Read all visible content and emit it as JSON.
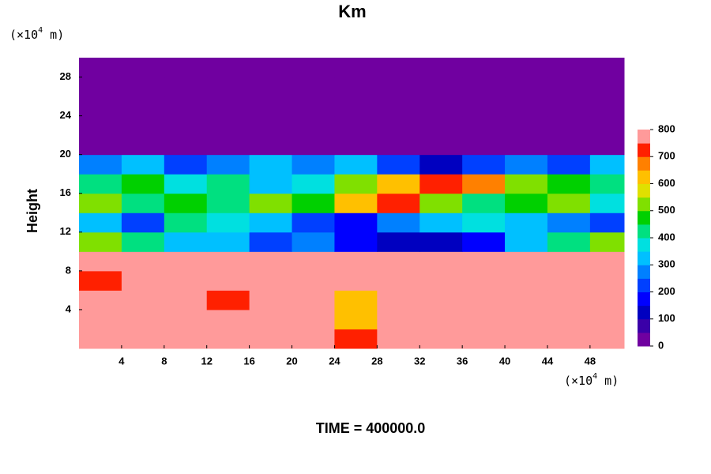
{
  "chart_data": {
    "type": "heatmap",
    "title": "Km",
    "y_label": "Height",
    "y_unit": {
      "prefix": "(×10",
      "exponent": "4",
      "suffix": " m)"
    },
    "x_unit": {
      "prefix": "(×10",
      "exponent": "4",
      "suffix": " m)"
    },
    "footer": "TIME = 400000.0",
    "x": [
      0,
      4,
      8,
      12,
      16,
      20,
      24,
      28,
      32,
      36,
      40,
      44,
      48,
      51.2
    ],
    "y": [
      0,
      2,
      4,
      6,
      8,
      10,
      12,
      14,
      16,
      18,
      20,
      22,
      24,
      26,
      28,
      30
    ],
    "z": [
      [
        800,
        800,
        800,
        800,
        800,
        800,
        700,
        800,
        800,
        800,
        800,
        800,
        800
      ],
      [
        800,
        800,
        800,
        800,
        800,
        800,
        600,
        800,
        800,
        800,
        800,
        800,
        800
      ],
      [
        800,
        750,
        800,
        700,
        800,
        800,
        600,
        800,
        800,
        800,
        800,
        800,
        800
      ],
      [
        700,
        800,
        800,
        800,
        800,
        800,
        800,
        800,
        800,
        800,
        800,
        800,
        800
      ],
      [
        800,
        800,
        800,
        800,
        800,
        800,
        800,
        800,
        800,
        800,
        800,
        800,
        800
      ],
      [
        500,
        400,
        300,
        300,
        200,
        250,
        150,
        100,
        100,
        150,
        300,
        400,
        500
      ],
      [
        300,
        200,
        400,
        350,
        300,
        200,
        150,
        250,
        300,
        350,
        300,
        250,
        200
      ],
      [
        500,
        400,
        450,
        400,
        500,
        450,
        600,
        700,
        500,
        400,
        450,
        500,
        350
      ],
      [
        400,
        450,
        350,
        400,
        300,
        350,
        500,
        600,
        700,
        650,
        500,
        450,
        400
      ],
      [
        250,
        300,
        200,
        250,
        300,
        250,
        300,
        200,
        100,
        200,
        250,
        200,
        300
      ],
      [
        0,
        0,
        0,
        0,
        0,
        0,
        0,
        0,
        0,
        0,
        0,
        0,
        0
      ],
      [
        0,
        0,
        0,
        0,
        0,
        0,
        0,
        0,
        0,
        0,
        0,
        0,
        0
      ],
      [
        0,
        0,
        0,
        0,
        0,
        0,
        0,
        0,
        0,
        0,
        0,
        0,
        0
      ],
      [
        0,
        0,
        0,
        0,
        0,
        0,
        0,
        0,
        0,
        0,
        0,
        0,
        0
      ],
      [
        0,
        0,
        0,
        0,
        0,
        0,
        0,
        0,
        0,
        0,
        0,
        0,
        0
      ]
    ],
    "xlim": [
      0,
      51.2
    ],
    "ylim": [
      0,
      30
    ],
    "xticks": [
      4,
      8,
      12,
      16,
      20,
      24,
      28,
      32,
      36,
      40,
      44,
      48
    ],
    "yticks": [
      4,
      8,
      12,
      16,
      20,
      24,
      28
    ],
    "clim": [
      0,
      800
    ],
    "cticks": [
      0,
      100,
      200,
      300,
      400,
      500,
      600,
      700,
      800
    ],
    "colors": [
      "#7000a0",
      "#3a00a8",
      "#0000c0",
      "#0000ff",
      "#0040ff",
      "#0080ff",
      "#00c0ff",
      "#00e0e0",
      "#00e080",
      "#00d000",
      "#80e000",
      "#e0e000",
      "#ffc000",
      "#ff8000",
      "#ff2000",
      "#ff9a9a"
    ]
  }
}
